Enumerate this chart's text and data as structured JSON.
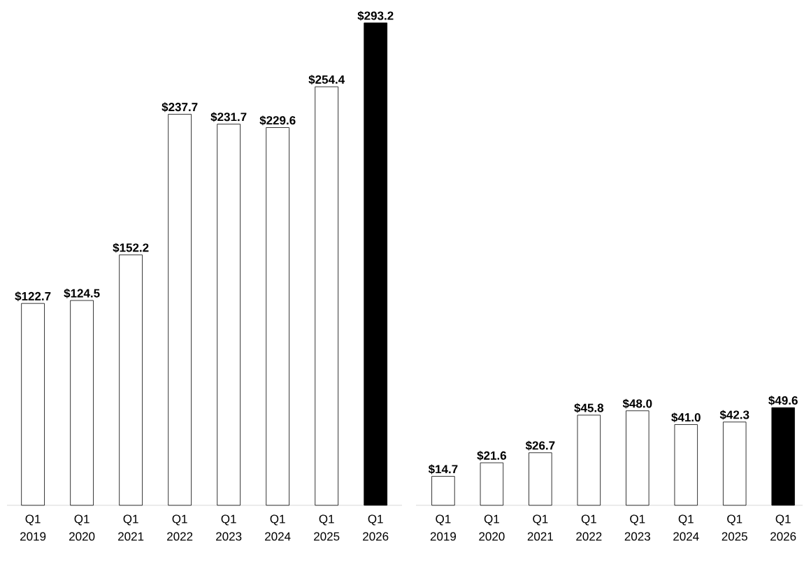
{
  "chart_data": [
    {
      "type": "bar",
      "categories": [
        "Q1 2019",
        "Q1 2020",
        "Q1 2021",
        "Q1 2022",
        "Q1 2023",
        "Q1 2024",
        "Q1 2025",
        "Q1 2026"
      ],
      "values": [
        122.7,
        124.5,
        152.2,
        237.7,
        231.7,
        229.6,
        254.4,
        293.2
      ],
      "value_labels": [
        "$122.7",
        "$124.5",
        "$152.2",
        "$237.7",
        "$231.7",
        "$229.6",
        "$254.4",
        "$293.2"
      ],
      "colors": [
        "#ffffff",
        "#ffffff",
        "#ffffff",
        "#ffffff",
        "#ffffff",
        "#ffffff",
        "#ffffff",
        "#000000"
      ]
    },
    {
      "type": "bar",
      "categories": [
        "Q1 2019",
        "Q1 2020",
        "Q1 2021",
        "Q1 2022",
        "Q1 2023",
        "Q1 2024",
        "Q1 2025",
        "Q1 2026"
      ],
      "values": [
        14.7,
        21.6,
        26.7,
        45.8,
        48.0,
        41.0,
        42.3,
        49.6
      ],
      "value_labels": [
        "$14.7",
        "$21.6",
        "$26.7",
        "$45.8",
        "$48.0",
        "$41.0",
        "$42.3",
        "$49.6"
      ],
      "colors": [
        "#ffffff",
        "#ffffff",
        "#ffffff",
        "#ffffff",
        "#ffffff",
        "#ffffff",
        "#ffffff",
        "#000000"
      ]
    }
  ]
}
